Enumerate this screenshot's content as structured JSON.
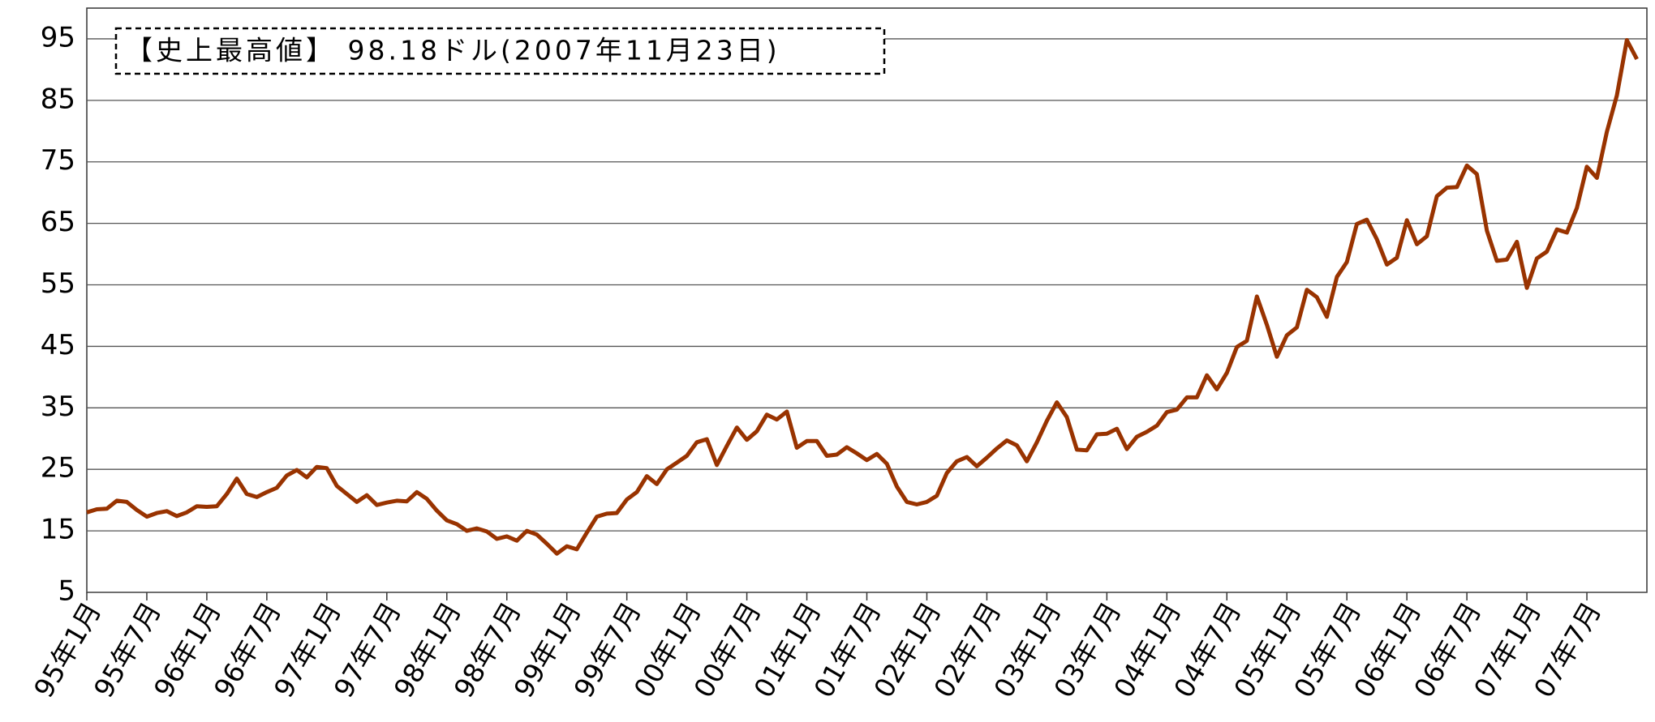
{
  "chart_data": {
    "type": "line",
    "annotation": "【史上最高値】 98.18ドル(2007年11月23日)",
    "categories": [
      "95年1月",
      null,
      null,
      null,
      null,
      null,
      "95年7月",
      null,
      null,
      null,
      null,
      null,
      "96年1月",
      null,
      null,
      null,
      null,
      null,
      "96年7月",
      null,
      null,
      null,
      null,
      null,
      "97年1月",
      null,
      null,
      null,
      null,
      null,
      "97年7月",
      null,
      null,
      null,
      null,
      null,
      "98年1月",
      null,
      null,
      null,
      null,
      null,
      "98年7月",
      null,
      null,
      null,
      null,
      null,
      "99年1月",
      null,
      null,
      null,
      null,
      null,
      "99年7月",
      null,
      null,
      null,
      null,
      null,
      "00年1月",
      null,
      null,
      null,
      null,
      null,
      "00年7月",
      null,
      null,
      null,
      null,
      null,
      "01年1月",
      null,
      null,
      null,
      null,
      null,
      "01年7月",
      null,
      null,
      null,
      null,
      null,
      "02年1月",
      null,
      null,
      null,
      null,
      null,
      "02年7月",
      null,
      null,
      null,
      null,
      null,
      "03年1月",
      null,
      null,
      null,
      null,
      null,
      "03年7月",
      null,
      null,
      null,
      null,
      null,
      "04年1月",
      null,
      null,
      null,
      null,
      null,
      "04年7月",
      null,
      null,
      null,
      null,
      null,
      "05年1月",
      null,
      null,
      null,
      null,
      null,
      "05年7月",
      null,
      null,
      null,
      null,
      null,
      "06年1月",
      null,
      null,
      null,
      null,
      null,
      "06年7月",
      null,
      null,
      null,
      null,
      null,
      "07年1月",
      null,
      null,
      null,
      null,
      null,
      "07年7月",
      null,
      null,
      null,
      null,
      null
    ],
    "series": [
      {
        "color": "#993300",
        "values": [
          18,
          18.5,
          18.6,
          19.9,
          19.7,
          18.4,
          17.3,
          17.9,
          18.2,
          17.4,
          18,
          19,
          18.9,
          19,
          21,
          23.5,
          21,
          20.5,
          21.3,
          22,
          24,
          24.9,
          23.7,
          25.4,
          25.2,
          22.3,
          21,
          19.7,
          20.8,
          19.2,
          19.6,
          19.9,
          19.8,
          21.3,
          20.2,
          18.3,
          16.7,
          16.1,
          15,
          15.4,
          14.9,
          13.7,
          14.1,
          13.4,
          15,
          14.4,
          12.9,
          11.3,
          12.5,
          12,
          14.7,
          17.3,
          17.8,
          17.9,
          20.1,
          21.3,
          23.9,
          22.6,
          25,
          26.1,
          27.2,
          29.4,
          29.9,
          25.7,
          28.8,
          31.8,
          29.8,
          31.2,
          33.9,
          33.1,
          34.4,
          28.5,
          29.6,
          29.6,
          27.2,
          27.4,
          28.6,
          27.6,
          26.5,
          27.5,
          25.9,
          22.2,
          19.7,
          19.3,
          19.7,
          20.7,
          24.4,
          26.3,
          27,
          25.5,
          26.9,
          28.4,
          29.7,
          28.9,
          26.3,
          29.4,
          32.9,
          35.9,
          33.5,
          28.2,
          28.1,
          30.7,
          30.8,
          31.6,
          28.3,
          30.3,
          31.1,
          32.1,
          34.3,
          34.7,
          36.7,
          36.7,
          40.3,
          38,
          40.7,
          44.9,
          45.9,
          53.1,
          48.5,
          43.3,
          46.8,
          48.1,
          54.2,
          53,
          49.8,
          56.3,
          58.7,
          64.9,
          65.6,
          62.4,
          58.3,
          59.4,
          65.5,
          61.6,
          62.9,
          69.4,
          70.8,
          70.9,
          74.4,
          73,
          63.8,
          58.9,
          59.1,
          62,
          54.5,
          59.3,
          60.4,
          64,
          63.5,
          67.5,
          74.2,
          72.4,
          79.9,
          85.8,
          94.8,
          91.7
        ]
      }
    ],
    "ylim": [
      5,
      100
    ],
    "yticks": [
      5,
      15,
      25,
      35,
      45,
      55,
      65,
      75,
      85,
      95
    ],
    "grid": true
  }
}
